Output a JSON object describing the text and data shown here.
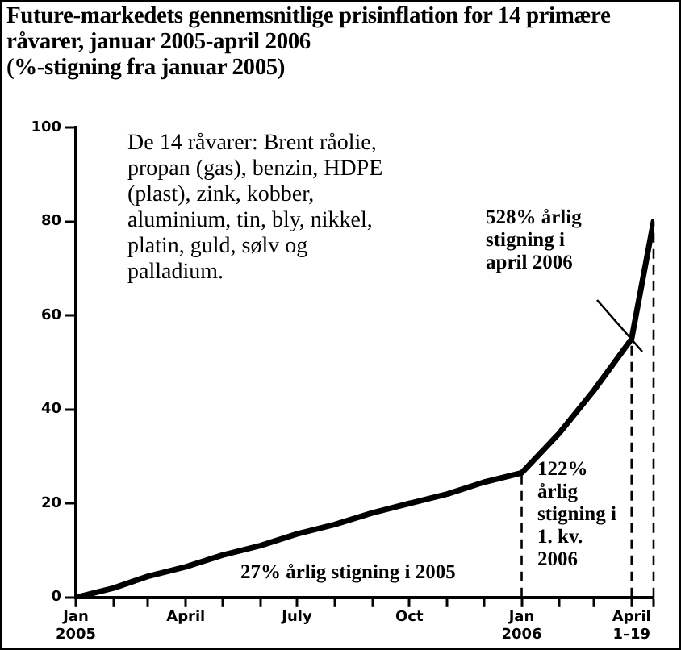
{
  "chart_data": {
    "type": "line",
    "title": "Future-markedets gennemsnitlige prisinflation for 14 primære råvarer, januar 2005-april 2006",
    "subtitle": "(%-stigning fra januar 2005)",
    "x": [
      "2005-01-01",
      "2005-02-01",
      "2005-03-01",
      "2005-04-01",
      "2005-05-01",
      "2005-06-01",
      "2005-07-01",
      "2005-08-01",
      "2005-09-01",
      "2005-10-01",
      "2005-11-01",
      "2005-12-01",
      "2006-01-01",
      "2006-02-01",
      "2006-03-01",
      "2006-04-01",
      "2006-04-19"
    ],
    "series": [
      {
        "color": "#000000",
        "values": [
          0,
          2,
          4.5,
          6.5,
          9,
          11,
          13.5,
          15.5,
          18,
          20,
          22,
          24.5,
          26.5,
          35,
          44,
          55,
          80
        ]
      }
    ],
    "xlim": [
      "2005-01-01",
      "2006-04-19"
    ],
    "xticks": [
      {
        "value": "2005-01-01",
        "label": "Jan 2005"
      },
      {
        "value": "2005-02-01",
        "label": null
      },
      {
        "value": "2005-03-01",
        "label": null
      },
      {
        "value": "2005-04-01",
        "label": "April"
      },
      {
        "value": "2005-05-01",
        "label": null
      },
      {
        "value": "2005-06-01",
        "label": null
      },
      {
        "value": "2005-07-01",
        "label": "July"
      },
      {
        "value": "2005-08-01",
        "label": null
      },
      {
        "value": "2005-09-01",
        "label": null
      },
      {
        "value": "2005-10-01",
        "label": "Oct"
      },
      {
        "value": "2005-11-01",
        "label": null
      },
      {
        "value": "2005-12-01",
        "label": null
      },
      {
        "value": "2006-01-01",
        "label": "Jan 2006"
      },
      {
        "value": "2006-02-01",
        "label": null
      },
      {
        "value": "2006-03-01",
        "label": null
      },
      {
        "value": "2006-04-01",
        "label": "April 1–19"
      },
      {
        "value": "2006-04-19",
        "label": null
      }
    ],
    "ylim": [
      0,
      100
    ],
    "yticks": [
      0,
      20,
      40,
      60,
      80,
      100
    ],
    "ref_lines": [
      {
        "axis": "x",
        "value": "2006-01-01",
        "line_style": "dashed"
      },
      {
        "axis": "x",
        "value": "2006-04-01",
        "line_style": "dashed"
      },
      {
        "axis": "x",
        "value": "2006-04-19",
        "line_style": "dashed"
      }
    ],
    "annotations": [
      "De 14 råvarer: Brent råolie, propan (gas), benzin, HDPE (plast), zink, kobber, aluminium, tin, bly, nikkel, platin, guld, sølv og palladium.",
      "27% årlig stigning i 2005",
      "122% årlig stigning i 1. kv. 2006",
      "528% årlig stigning i april 2006"
    ]
  }
}
